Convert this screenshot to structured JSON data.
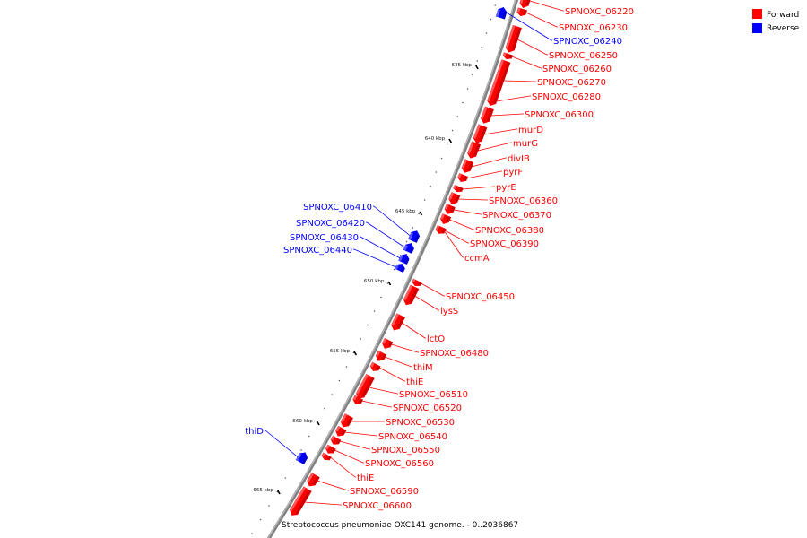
{
  "legend": {
    "items": [
      {
        "label": "Forward",
        "color": "#ff0000"
      },
      {
        "label": "Reverse",
        "color": "#0000ff"
      }
    ]
  },
  "caption": "Streptococcus pneumoniae OXC141 genome. - 0..2036867",
  "axis": {
    "ticks": [
      "635 kbp",
      "640 kbp",
      "645 kbp",
      "650 kbp",
      "655 kbp",
      "660 kbp",
      "665 kbp"
    ],
    "backbone_color": "#808080"
  },
  "genes": [
    {
      "name": "SPNOXC_06220",
      "strand": "forward"
    },
    {
      "name": "SPNOXC_06230",
      "strand": "forward"
    },
    {
      "name": "SPNOXC_06240",
      "strand": "reverse"
    },
    {
      "name": "SPNOXC_06250",
      "strand": "forward"
    },
    {
      "name": "SPNOXC_06260",
      "strand": "forward"
    },
    {
      "name": "SPNOXC_06270",
      "strand": "forward"
    },
    {
      "name": "SPNOXC_06280",
      "strand": "forward"
    },
    {
      "name": "SPNOXC_06300",
      "strand": "forward"
    },
    {
      "name": "murD",
      "strand": "forward"
    },
    {
      "name": "murG",
      "strand": "forward"
    },
    {
      "name": "divIB",
      "strand": "forward"
    },
    {
      "name": "pyrF",
      "strand": "forward"
    },
    {
      "name": "pyrE",
      "strand": "forward"
    },
    {
      "name": "SPNOXC_06360",
      "strand": "forward"
    },
    {
      "name": "SPNOXC_06370",
      "strand": "forward"
    },
    {
      "name": "SPNOXC_06380",
      "strand": "forward"
    },
    {
      "name": "SPNOXC_06390",
      "strand": "forward"
    },
    {
      "name": "ccmA",
      "strand": "forward"
    },
    {
      "name": "SPNOXC_06410",
      "strand": "reverse"
    },
    {
      "name": "SPNOXC_06420",
      "strand": "reverse"
    },
    {
      "name": "SPNOXC_06430",
      "strand": "reverse"
    },
    {
      "name": "SPNOXC_06440",
      "strand": "reverse"
    },
    {
      "name": "SPNOXC_06450",
      "strand": "forward"
    },
    {
      "name": "lysS",
      "strand": "forward"
    },
    {
      "name": "lctO",
      "strand": "forward"
    },
    {
      "name": "SPNOXC_06480",
      "strand": "forward"
    },
    {
      "name": "thiM",
      "strand": "forward"
    },
    {
      "name": "thiE",
      "strand": "forward"
    },
    {
      "name": "SPNOXC_06510",
      "strand": "forward"
    },
    {
      "name": "SPNOXC_06520",
      "strand": "forward"
    },
    {
      "name": "SPNOXC_06530",
      "strand": "forward"
    },
    {
      "name": "SPNOXC_06540",
      "strand": "forward"
    },
    {
      "name": "SPNOXC_06550",
      "strand": "forward"
    },
    {
      "name": "SPNOXC_06560",
      "strand": "forward"
    },
    {
      "name": "thiE",
      "strand": "forward"
    },
    {
      "name": "SPNOXC_06590",
      "strand": "forward"
    },
    {
      "name": "SPNOXC_06600",
      "strand": "forward"
    },
    {
      "name": "thiD",
      "strand": "reverse"
    }
  ]
}
